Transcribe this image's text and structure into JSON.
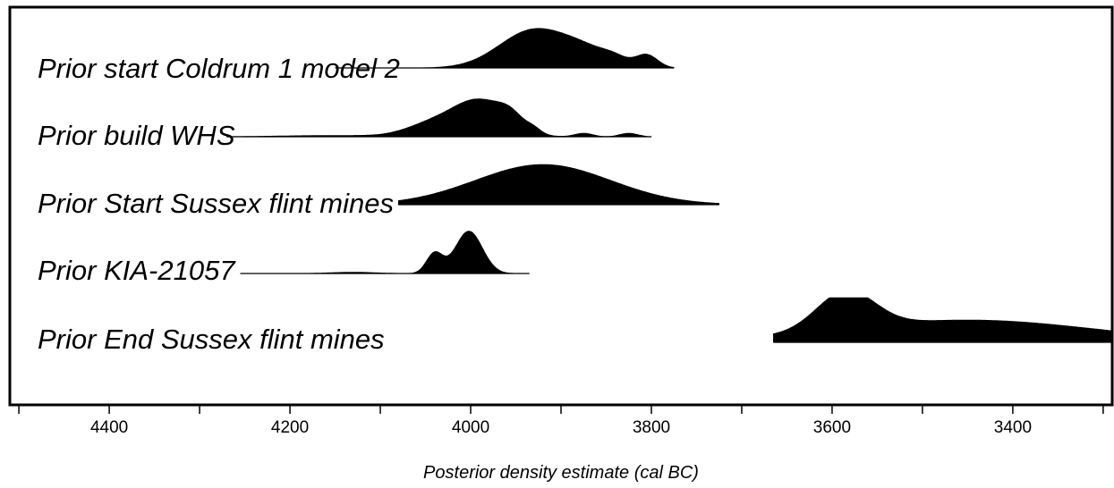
{
  "chart_data": {
    "type": "area",
    "title": "",
    "xlabel": "Posterior density estimate (cal BC)",
    "ylabel": "",
    "xlim": [
      4510,
      3290
    ],
    "x_reversed": true,
    "x_ticks": [
      4400,
      4200,
      4000,
      3800,
      3600,
      3400
    ],
    "grid": false,
    "series": [
      {
        "name": "Prior start Coldrum 1 model 2",
        "range": [
          4150,
          3775
        ],
        "peaks": [
          {
            "x": 3930,
            "h": 0.85,
            "w": 38
          },
          {
            "x": 3870,
            "h": 0.3,
            "w": 28
          },
          {
            "x": 3805,
            "h": 0.28,
            "w": 12
          },
          {
            "x": 3840,
            "h": 0.12,
            "w": 14
          }
        ]
      },
      {
        "name": "Prior build WHS",
        "range": [
          4270,
          3800
        ],
        "peaks": [
          {
            "x": 3990,
            "h": 0.8,
            "w": 30
          },
          {
            "x": 4045,
            "h": 0.25,
            "w": 28
          },
          {
            "x": 3955,
            "h": 0.25,
            "w": 14
          },
          {
            "x": 3930,
            "h": 0.1,
            "w": 8
          },
          {
            "x": 3875,
            "h": 0.08,
            "w": 10
          },
          {
            "x": 3825,
            "h": 0.08,
            "w": 10
          },
          {
            "x": 4150,
            "h": 0.03,
            "w": 60
          }
        ]
      },
      {
        "name": "Prior Start Sussex flint mines",
        "range": [
          4080,
          3725
        ],
        "peaks": [
          {
            "x": 3920,
            "h": 0.9,
            "w": 75
          }
        ]
      },
      {
        "name": "Prior KIA-21057",
        "range": [
          4255,
          3935
        ],
        "peaks": [
          {
            "x": 4002,
            "h": 0.95,
            "w": 15
          },
          {
            "x": 4040,
            "h": 0.45,
            "w": 9
          },
          {
            "x": 4130,
            "h": 0.03,
            "w": 25
          }
        ]
      },
      {
        "name": "Prior End Sussex flint mines",
        "range": [
          3665,
          3290
        ],
        "peaks": [
          {
            "x": 3585,
            "h": 0.85,
            "w": 32
          },
          {
            "x": 3450,
            "h": 0.5,
            "w": 140
          }
        ]
      }
    ]
  }
}
